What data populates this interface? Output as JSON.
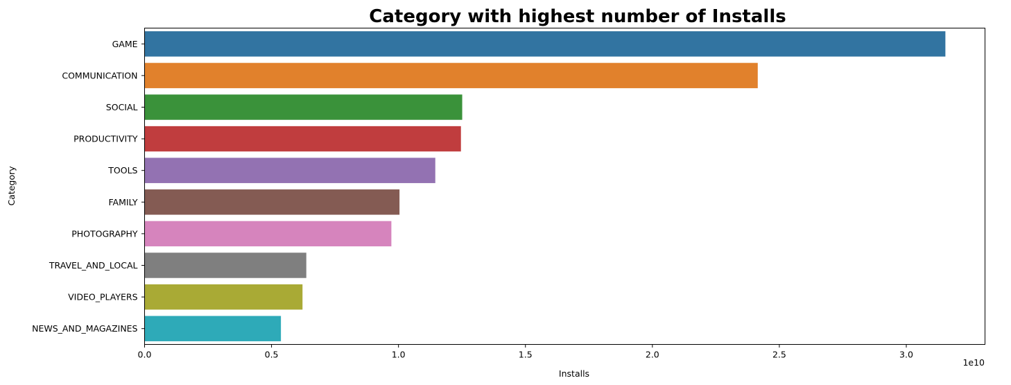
{
  "chart_data": {
    "type": "bar",
    "orientation": "horizontal",
    "title": "Category with highest number of Installs",
    "xlabel": "Installs",
    "ylabel": "Category",
    "x_offset_text": "1e10",
    "x_scale_exponent": 10,
    "categories": [
      "GAME",
      "COMMUNICATION",
      "SOCIAL",
      "PRODUCTIVITY",
      "TOOLS",
      "FAMILY",
      "PHOTOGRAPHY",
      "TRAVEL_AND_LOCAL",
      "VIDEO_PLAYERS",
      "NEWS_AND_MAGAZINES"
    ],
    "values": [
      31540000000,
      24150000000,
      12510000000,
      12460000000,
      11450000000,
      10040000000,
      9720000000,
      6370000000,
      6220000000,
      5370000000
    ],
    "colors": [
      "#3274a1",
      "#e1812c",
      "#3a923a",
      "#c03d3e",
      "#9372b2",
      "#845b53",
      "#d684bd",
      "#7f7f7f",
      "#a9aa35",
      "#2eaab8"
    ],
    "xlim": [
      0,
      33100000000
    ],
    "xticks": [
      0,
      0.5,
      1.0,
      1.5,
      2.0,
      2.5,
      3.0
    ],
    "xtick_labels": [
      "0.0",
      "0.5",
      "1.0",
      "1.5",
      "2.0",
      "2.5",
      "3.0"
    ],
    "grid": false,
    "legend": "none"
  }
}
